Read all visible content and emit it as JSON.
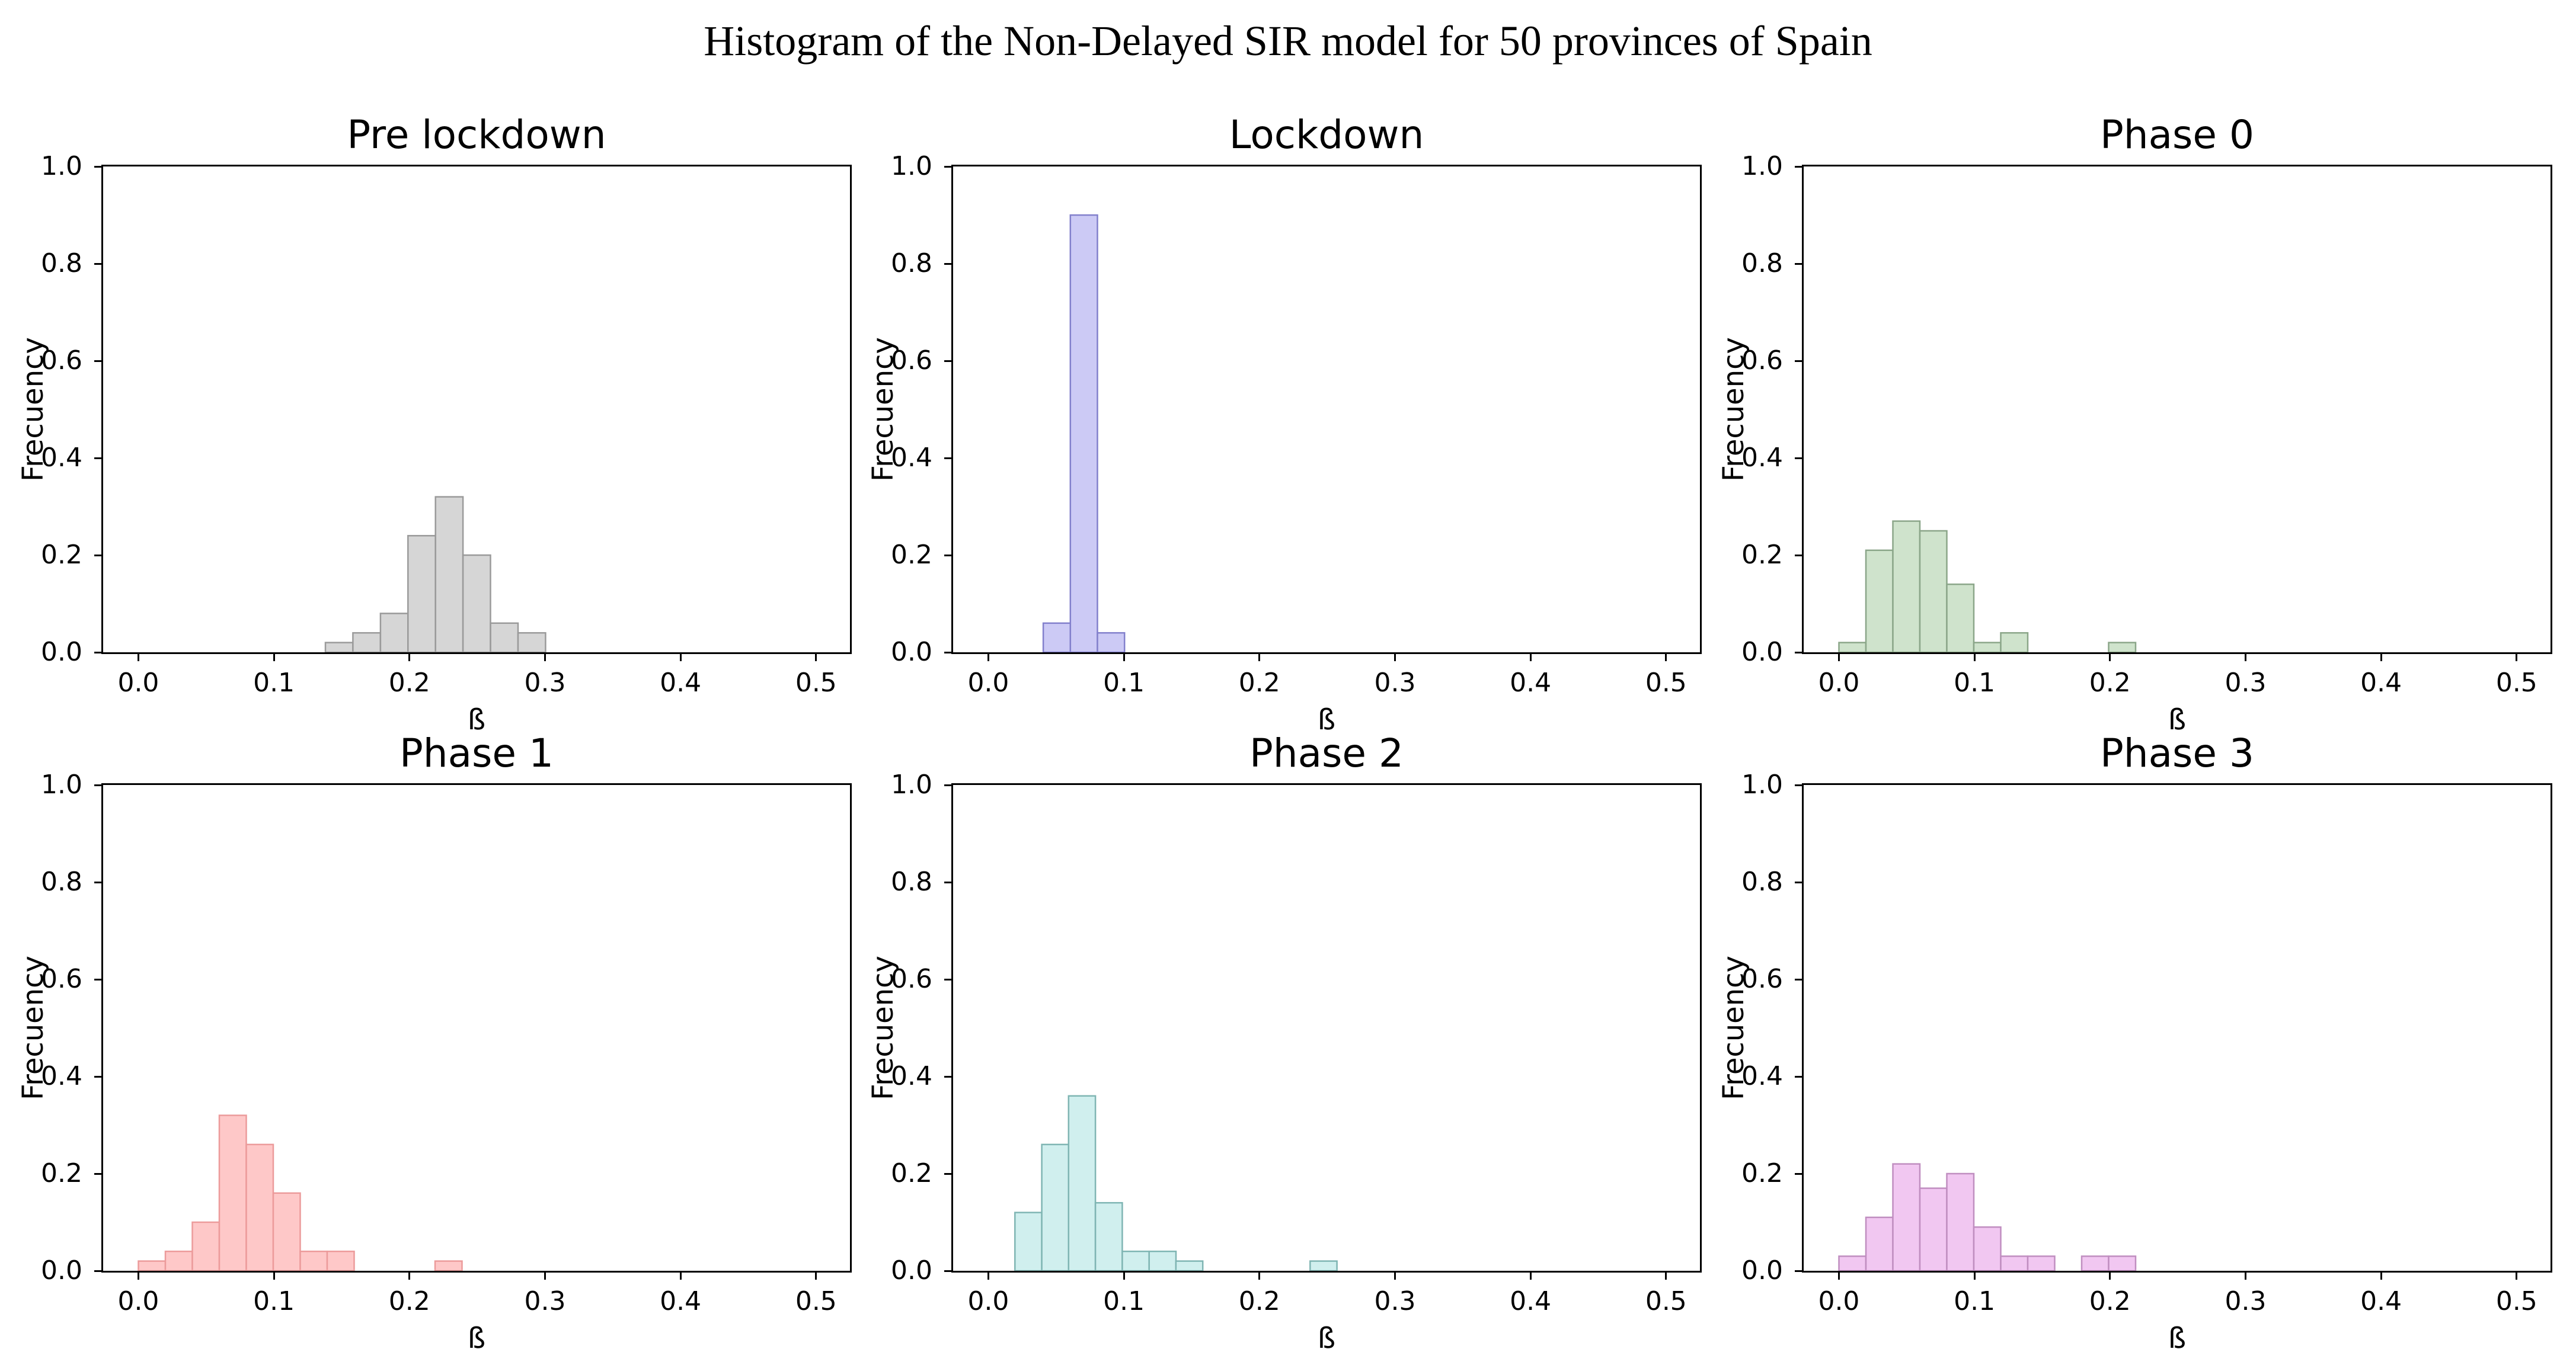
{
  "figure": {
    "suptitle": "Histogram of the Non-Delayed SIR model for 50 provinces of Spain",
    "background": "#ffffff",
    "text_color": "#000000"
  },
  "axes": {
    "xlabel": "ß",
    "ylabel": "Frecuency",
    "xlim": [
      -0.026,
      0.525
    ],
    "ylim": [
      0.0,
      1.0
    ],
    "xtick_values": [
      0.0,
      0.1,
      0.2,
      0.3,
      0.4,
      0.5
    ],
    "xtick_labels": [
      "0.0",
      "0.1",
      "0.2",
      "0.3",
      "0.4",
      "0.5"
    ],
    "ytick_values": [
      0.0,
      0.2,
      0.4,
      0.6,
      0.8,
      1.0
    ],
    "ytick_labels": [
      "0.0",
      "0.2",
      "0.4",
      "0.6",
      "0.8",
      "1.0"
    ],
    "grid": false,
    "spines": "box"
  },
  "chart_data": [
    {
      "type": "bar",
      "id": "pre-lockdown",
      "title": "Pre lockdown",
      "bin_start": 0.138,
      "bin_width": 0.0203,
      "values": [
        0.02,
        0.04,
        0.08,
        0.24,
        0.32,
        0.2,
        0.06,
        0.04
      ],
      "fill": "#d6d6d6",
      "edge": "#9a9a9a",
      "xlabel": "ß",
      "ylabel": "Frecuency",
      "ylim": [
        0.0,
        1.0
      ]
    },
    {
      "type": "bar",
      "id": "lockdown",
      "title": "Lockdown",
      "bin_start": 0.0405,
      "bin_width": 0.02,
      "values": [
        0.06,
        0.9,
        0.04
      ],
      "fill": "#cccaf5",
      "edge": "#8280cc",
      "xlabel": "ß",
      "ylabel": "Frecuency",
      "ylim": [
        0.0,
        1.0
      ]
    },
    {
      "type": "bar",
      "id": "phase-0",
      "title": "Phase 0",
      "bin_start": 0.0,
      "bin_width": 0.0199,
      "values": [
        0.02,
        0.21,
        0.27,
        0.25,
        0.14,
        0.02,
        0.04,
        0,
        0,
        0,
        0.02
      ],
      "fill": "#cfe3cc",
      "edge": "#8ba689",
      "xlabel": "ß",
      "ylabel": "Frecuency",
      "ylim": [
        0.0,
        1.0
      ]
    },
    {
      "type": "bar",
      "id": "phase-1",
      "title": "Phase 1",
      "bin_start": 0.0,
      "bin_width": 0.0199,
      "values": [
        0.02,
        0.04,
        0.1,
        0.32,
        0.26,
        0.16,
        0.04,
        0.04,
        0,
        0,
        0,
        0.02
      ],
      "fill": "#fec8c8",
      "edge": "#ec9b9b",
      "xlabel": "ß",
      "ylabel": "Frecuency",
      "ylim": [
        0.0,
        1.0
      ]
    },
    {
      "type": "bar",
      "id": "phase-2",
      "title": "Phase 2",
      "bin_start": 0.0196,
      "bin_width": 0.0198,
      "values": [
        0.12,
        0.26,
        0.36,
        0.14,
        0.04,
        0.04,
        0.02,
        0,
        0,
        0,
        0,
        0.02
      ],
      "fill": "#d0efee",
      "edge": "#7fb5b3",
      "xlabel": "ß",
      "ylabel": "Frecuency",
      "ylim": [
        0.0,
        1.0
      ]
    },
    {
      "type": "bar",
      "id": "phase-3",
      "title": "Phase 3",
      "bin_start": 0.0,
      "bin_width": 0.0199,
      "values": [
        0.03,
        0.11,
        0.22,
        0.17,
        0.2,
        0.09,
        0.03,
        0.03,
        0,
        0.03,
        0.03
      ],
      "fill": "#f1c7f1",
      "edge": "#c08ec0",
      "xlabel": "ß",
      "ylabel": "Frecuency",
      "ylim": [
        0.0,
        1.0
      ]
    }
  ]
}
